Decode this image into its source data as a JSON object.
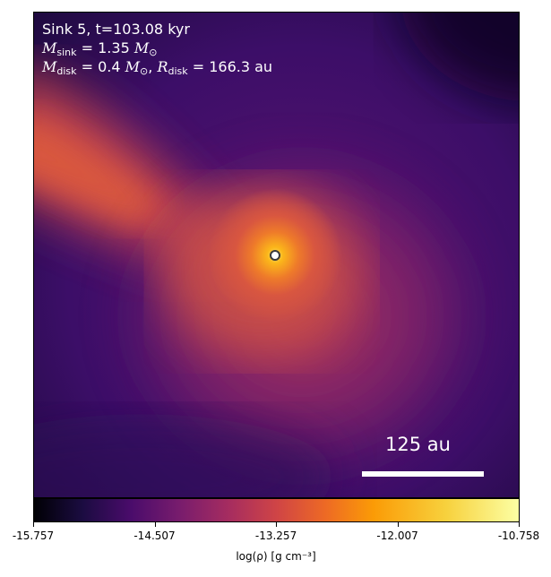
{
  "chart_data": {
    "type": "heatmap",
    "colormap": "inferno",
    "annotations": {
      "line1": "Sink 5, t=103.08 kyr",
      "msink_symbol": "M",
      "msink_sub": "sink",
      "msink_value": "= 1.35",
      "msun": "M",
      "msun_sub": "⊙",
      "mdisk_symbol": "M",
      "mdisk_sub": "disk",
      "mdisk_value": "= 0.4",
      "rdisk_symbol": "R",
      "rdisk_sub": "disk",
      "rdisk_value": "= 166.3",
      "rdisk_unit": "au"
    },
    "scalebar": {
      "label": "125 au",
      "length_au": 125
    },
    "colorbar": {
      "label": "log(ρ) [g cm⁻³]",
      "range": [
        -15.757,
        -10.758
      ],
      "ticks": [
        "-15.757",
        "-14.507",
        "-13.257",
        "-12.007",
        "-10.758"
      ]
    },
    "sink": {
      "marker": "circle"
    }
  },
  "colors": {
    "background_dark": "#2a0a5e",
    "disk_orange": "#d8543f",
    "core_yellow": "#fcb21a",
    "annotation_text": "#ffffff"
  }
}
